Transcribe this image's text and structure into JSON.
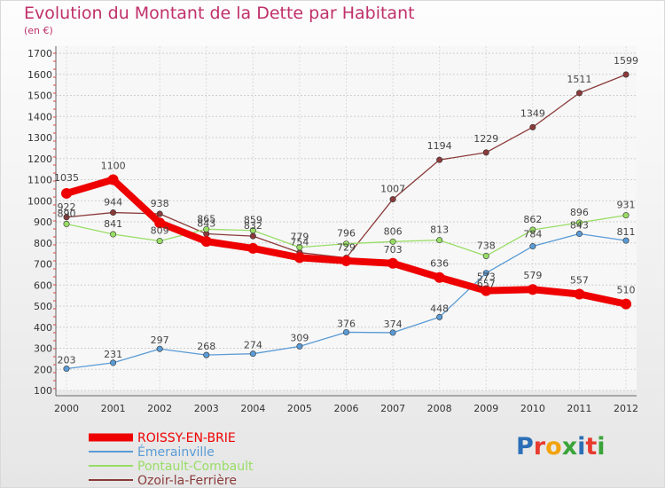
{
  "title": "Evolution du Montant de la Dette par Habitant",
  "subtitle": "(en €)",
  "logo": {
    "text": "Proxiti",
    "colors": [
      "#2b6fb6",
      "#e83b2f",
      "#f2a20c",
      "#3aa43a",
      "#2b6fb6",
      "#e83b2f",
      "#3aa43a"
    ]
  },
  "chart_data": {
    "type": "line",
    "title": "Evolution du Montant de la Dette par Habitant",
    "subtitle": "(en €)",
    "x": [
      "2000",
      "2001",
      "2002",
      "2003",
      "2004",
      "2005",
      "2006",
      "2007",
      "2008",
      "2009",
      "2010",
      "2011",
      "2012"
    ],
    "ylim": [
      100,
      1700
    ],
    "yticks": [
      "100",
      "200",
      "300",
      "400",
      "500",
      "600",
      "700",
      "800",
      "900",
      "1000",
      "1100",
      "1200",
      "1300",
      "1400",
      "1500",
      "1600",
      "1700"
    ],
    "grid": true,
    "legend_position": "bottom-left",
    "series": [
      {
        "name": "ROISSY-EN-BRIE",
        "color": "#ee0000",
        "values": [
          1035,
          1100,
          895,
          807,
          774,
          730,
          715,
          703,
          636,
          573,
          579,
          557,
          510
        ],
        "labels": [
          "1035",
          "1100",
          "",
          "",
          "",
          "",
          "",
          "703",
          "636",
          "573",
          "579",
          "557",
          "510"
        ]
      },
      {
        "name": "Émerainville",
        "color": "#5a9bd5",
        "values": [
          203,
          231,
          297,
          268,
          274,
          309,
          376,
          374,
          448,
          657,
          784,
          843,
          811
        ],
        "labels": [
          "203",
          "231",
          "297",
          "268",
          "274",
          "309",
          "376",
          "374",
          "448",
          "657",
          "784",
          "843",
          "811"
        ]
      },
      {
        "name": "Pontault-Combault",
        "color": "#99dd66",
        "values": [
          890,
          841,
          809,
          865,
          859,
          779,
          796,
          806,
          813,
          738,
          862,
          896,
          931
        ],
        "labels": [
          "890",
          "841",
          "809",
          "865",
          "859",
          "779",
          "796",
          "806",
          "813",
          "738",
          "862",
          "896",
          "931"
        ]
      },
      {
        "name": "Ozoir-la-Ferrière",
        "color": "#8b3a3a",
        "values": [
          922,
          944,
          938,
          843,
          832,
          754,
          729,
          1007,
          1194,
          1229,
          1349,
          1511,
          1599
        ],
        "labels": [
          "922",
          "944",
          "938",
          "843",
          "832",
          "754",
          "729",
          "1007",
          "1194",
          "1229",
          "1349",
          "1511",
          "1599"
        ]
      }
    ]
  }
}
